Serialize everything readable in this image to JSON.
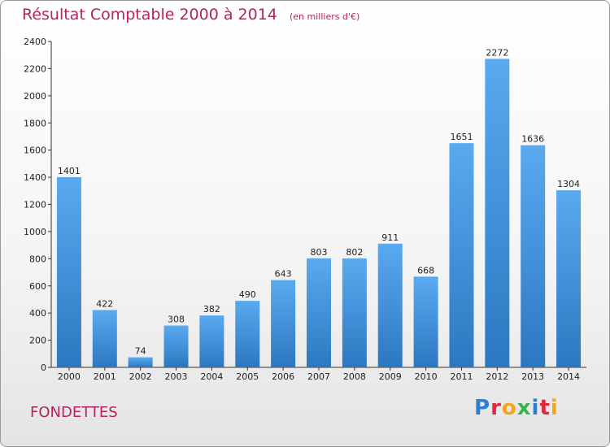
{
  "title": "Résultat Comptable 2000 à 2014",
  "subtitle": "(en milliers d'€)",
  "commune": "FONDETTES",
  "logo": {
    "letters": [
      "P",
      "r",
      "o",
      "x",
      "i",
      "t",
      "i"
    ],
    "colors": [
      "#2a7fd4",
      "#e2263d",
      "#f2a51e",
      "#3bb34a",
      "#2a7fd4",
      "#e2263d",
      "#f2a51e"
    ]
  },
  "chart_data": {
    "type": "bar",
    "title": "Résultat Comptable 2000 à 2014",
    "subtitle": "(en milliers d'€)",
    "categories": [
      "2000",
      "2001",
      "2002",
      "2003",
      "2004",
      "2005",
      "2006",
      "2007",
      "2008",
      "2009",
      "2010",
      "2011",
      "2012",
      "2013",
      "2014"
    ],
    "values": [
      1401,
      422,
      74,
      308,
      382,
      490,
      643,
      803,
      802,
      911,
      668,
      1651,
      2272,
      1636,
      1304
    ],
    "ylim": [
      0,
      2400
    ],
    "yticks": [
      0,
      200,
      400,
      600,
      800,
      1000,
      1200,
      1400,
      1600,
      1800,
      2000,
      2200,
      2400
    ],
    "grid": false,
    "bar_color": "#3f8fd8"
  }
}
